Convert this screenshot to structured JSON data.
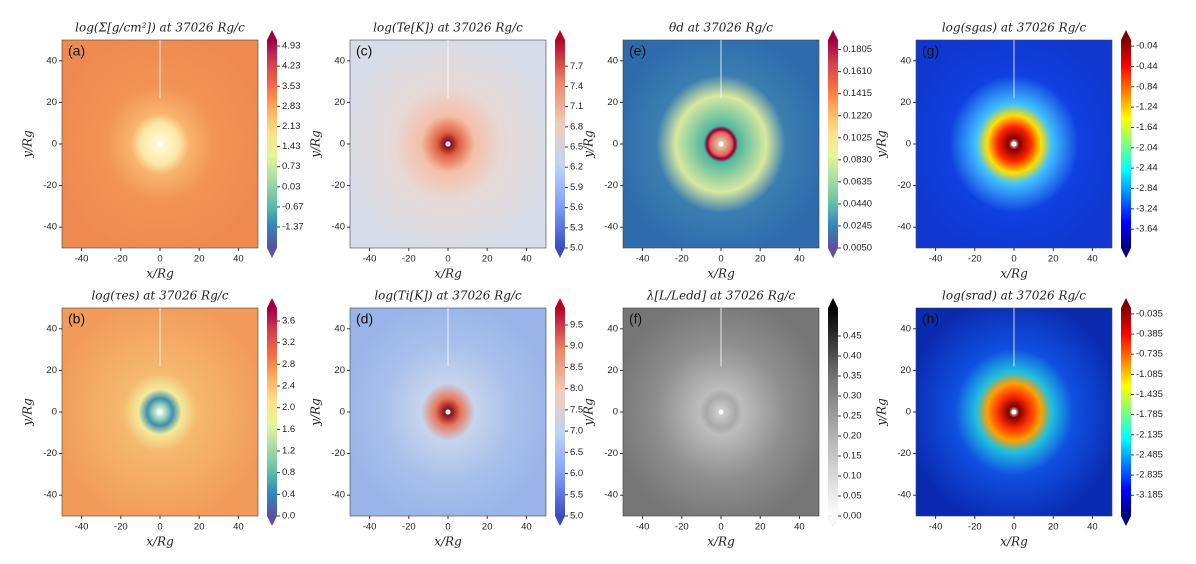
{
  "chart_data": [
    {
      "type": "heatmap",
      "title": "log(Σ[g/cm²]) at 37026 Rg/c",
      "panel_label": "(a)",
      "xlabel": "x/Rg",
      "ylabel": "y/Rg",
      "xlim": [
        -50,
        50
      ],
      "ylim": [
        -50,
        50
      ],
      "xticks": [
        -40,
        -20,
        0,
        20,
        40
      ],
      "yticks": [
        -40,
        -20,
        0,
        20,
        40
      ],
      "clim": [
        -2.1,
        5.14
      ],
      "cticks": [
        4.93,
        4.23,
        3.53,
        2.83,
        2.13,
        1.43,
        0.73,
        0.03,
        -0.67,
        -1.37
      ],
      "colormap": [
        "#5e4fa2",
        "#3288bd",
        "#66c2a5",
        "#abdda4",
        "#e6f598",
        "#fee08b",
        "#fdae61",
        "#f46d43",
        "#d53e4f",
        "#9e0142"
      ]
    },
    {
      "type": "heatmap",
      "title": "log(τes) at 37026 Rg/c",
      "panel_label": "(b)",
      "xlabel": "x/Rg",
      "ylabel": "y/Rg",
      "xlim": [
        -50,
        50
      ],
      "ylim": [
        -50,
        50
      ],
      "xticks": [
        -40,
        -20,
        0,
        20,
        40
      ],
      "yticks": [
        -40,
        -20,
        0,
        20,
        40
      ],
      "clim": [
        0,
        3.84
      ],
      "cticks": [
        3.6,
        3.2,
        2.8,
        2.4,
        {
          "value": 2,
          "label": "2.0"
        },
        1.6,
        1.2,
        0.8,
        0.4,
        {
          "value": 0,
          "label": "0.0"
        }
      ],
      "colormap": [
        "#5e4fa2",
        "#3288bd",
        "#66c2a5",
        "#abdda4",
        "#e6f598",
        "#fee08b",
        "#fdae61",
        "#f46d43",
        "#d53e4f",
        "#9e0142"
      ]
    },
    {
      "type": "heatmap",
      "title": "log(Te[K]) at 37026 Rg/c",
      "panel_label": "(c)",
      "xlabel": "x/Rg",
      "ylabel": "y/Rg",
      "xlim": [
        -50,
        50
      ],
      "ylim": [
        -50,
        50
      ],
      "xticks": [
        -40,
        -20,
        0,
        20,
        40
      ],
      "yticks": [
        -40,
        -20,
        0,
        20,
        40
      ],
      "clim": [
        5.0,
        8.09
      ],
      "cticks": [
        7.7,
        7.4,
        7.1,
        6.8,
        6.5,
        6.2,
        5.9,
        5.6,
        5.3,
        {
          "value": 5,
          "label": "5.0"
        }
      ],
      "colormap": [
        "#3b4cc0",
        "#7b9ff9",
        "#c0d4f5",
        "#f2cbb7",
        "#ee8468",
        "#b40426"
      ]
    },
    {
      "type": "heatmap",
      "title": "log(Ti[K]) at 37026 Rg/c",
      "panel_label": "(d)",
      "xlabel": "x/Rg",
      "ylabel": "y/Rg",
      "xlim": [
        -50,
        50
      ],
      "ylim": [
        -50,
        50
      ],
      "xticks": [
        -40,
        -20,
        0,
        20,
        40
      ],
      "yticks": [
        -40,
        -20,
        0,
        20,
        40
      ],
      "clim": [
        5.0,
        9.9
      ],
      "cticks": [
        9.5,
        {
          "value": 9,
          "label": "9.0"
        },
        8.5,
        {
          "value": 8,
          "label": "8.0"
        },
        7.5,
        {
          "value": 7,
          "label": "7.0"
        },
        6.5,
        {
          "value": 6,
          "label": "6.0"
        },
        5.5,
        {
          "value": 5,
          "label": "5.0"
        }
      ],
      "colormap": [
        "#3b4cc0",
        "#7b9ff9",
        "#c0d4f5",
        "#f2cbb7",
        "#ee8468",
        "#b40426"
      ]
    },
    {
      "type": "heatmap",
      "title": "θd at 37026 Rg/c",
      "panel_label": "(e)",
      "xlabel": "x/Rg",
      "ylabel": "y/Rg",
      "xlim": [
        -50,
        50
      ],
      "ylim": [
        -50,
        50
      ],
      "xticks": [
        -40,
        -20,
        0,
        20,
        40
      ],
      "yticks": [
        -40,
        -20,
        0,
        20,
        40
      ],
      "clim": [
        0.005,
        0.189
      ],
      "cticks": [
        0.1805,
        {
          "value": 0.161,
          "label": "0.1610"
        },
        0.1415,
        {
          "value": 0.122,
          "label": "0.1220"
        },
        0.1025,
        {
          "value": 0.083,
          "label": "0.0830"
        },
        0.0635,
        {
          "value": 0.044,
          "label": "0.0440"
        },
        0.0245,
        {
          "value": 0.005,
          "label": "0.0050"
        }
      ],
      "colormap": [
        "#5e4fa2",
        "#3288bd",
        "#66c2a5",
        "#abdda4",
        "#e6f598",
        "#fee08b",
        "#fdae61",
        "#f46d43",
        "#d53e4f",
        "#9e0142"
      ]
    },
    {
      "type": "heatmap",
      "title": "λ[L/Ledd] at 37026 Rg/c",
      "panel_label": "(f)",
      "xlabel": "x/Rg",
      "ylabel": "y/Rg",
      "xlim": [
        -50,
        50
      ],
      "ylim": [
        -50,
        50
      ],
      "xticks": [
        -40,
        -20,
        0,
        20,
        40
      ],
      "yticks": [
        -40,
        -20,
        0,
        20,
        40
      ],
      "clim": [
        0,
        0.52
      ],
      "cticks": [
        0.45,
        {
          "value": 0.4,
          "label": "0.40"
        },
        0.35,
        {
          "value": 0.3,
          "label": "0.30"
        },
        0.25,
        {
          "value": 0.2,
          "label": "0.20"
        },
        0.15,
        {
          "value": 0.1,
          "label": "0.10"
        },
        0.05,
        {
          "value": 0,
          "label": "0.00"
        }
      ],
      "colormap": [
        "#ffffff",
        "#bdbdbd",
        "#737373",
        "#000000"
      ]
    },
    {
      "type": "heatmap",
      "title": "log(sgas) at 37026 Rg/c",
      "panel_label": "(g)",
      "xlabel": "x/Rg",
      "ylabel": "y/Rg",
      "xlim": [
        -50,
        50
      ],
      "ylim": [
        -50,
        50
      ],
      "xticks": [
        -40,
        -20,
        0,
        20,
        40
      ],
      "yticks": [
        -40,
        -20,
        0,
        20,
        40
      ],
      "clim": [
        -4.01,
        0.08
      ],
      "cticks": [
        -0.04,
        -0.44,
        -0.84,
        -1.24,
        -1.64,
        -2.04,
        -2.44,
        -2.84,
        -3.24,
        -3.64
      ],
      "colormap": [
        "#00007f",
        "#0000ff",
        "#007fff",
        "#00ffff",
        "#7fff7f",
        "#ffff00",
        "#ff7f00",
        "#ff0000",
        "#7f0000"
      ]
    },
    {
      "type": "heatmap",
      "title": "log(srad) at 37026 Rg/c",
      "panel_label": "(h)",
      "xlabel": "x/Rg",
      "ylabel": "y/Rg",
      "xlim": [
        -50,
        50
      ],
      "ylim": [
        -50,
        50
      ],
      "xticks": [
        -40,
        -20,
        0,
        20,
        40
      ],
      "yticks": [
        -40,
        -20,
        0,
        20,
        40
      ],
      "clim": [
        -3.546,
        0.068
      ],
      "cticks": [
        -0.035,
        -0.385,
        -0.735,
        -1.085,
        -1.435,
        -1.785,
        -2.135,
        -2.485,
        -2.835,
        -3.185
      ],
      "colormap": [
        "#00007f",
        "#0000ff",
        "#007fff",
        "#00ffff",
        "#7fff7f",
        "#ffff00",
        "#ff7f00",
        "#ff0000",
        "#7f0000"
      ]
    }
  ]
}
